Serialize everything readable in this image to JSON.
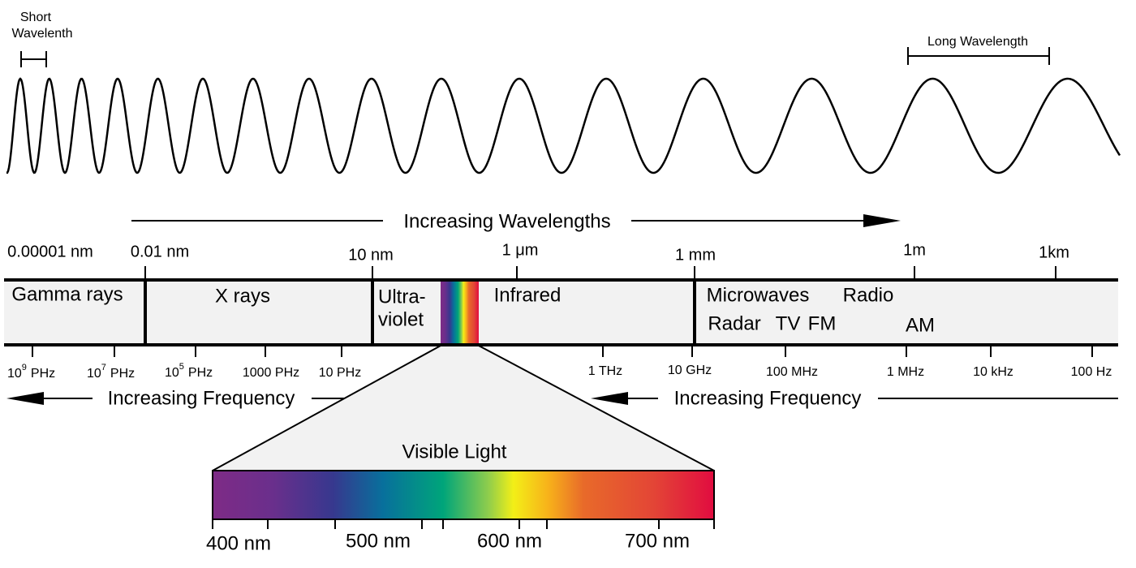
{
  "wave": {
    "short_label": [
      "Short",
      "Wavelenth"
    ],
    "long_label": "Long Wavelength"
  },
  "wavelength_arrow": "Increasing Wavelengths",
  "wavelength_ticks": [
    "0.00001 nm",
    "0.01 nm",
    "10 nm",
    "1 μm",
    "1 mm",
    "1m",
    "1km"
  ],
  "bands": {
    "gamma": "Gamma rays",
    "xray": "X rays",
    "uv": [
      "Ultra-",
      "violet"
    ],
    "infrared": "Infrared",
    "microwaves": "Microwaves",
    "radio": "Radio",
    "radar": "Radar",
    "tv": "TV",
    "fm": "FM",
    "am": "AM"
  },
  "frequency_ticks": [
    {
      "base": "10",
      "exp": "9",
      "unit": "PHz"
    },
    {
      "base": "10",
      "exp": "7",
      "unit": "PHz"
    },
    {
      "base": "10",
      "exp": "5",
      "unit": "PHz"
    },
    "1000 PHz",
    "10 PHz",
    "1 THz",
    "10 GHz",
    "100 MHz",
    "1 MHz",
    "10 kHz",
    "100 Hz"
  ],
  "frequency_arrows": [
    "Increasing Frequency",
    "Increasing Frequency"
  ],
  "visible": {
    "title": "Visible Light",
    "ticks": [
      "400 nm",
      "500 nm",
      "600 nm",
      "700 nm"
    ]
  }
}
